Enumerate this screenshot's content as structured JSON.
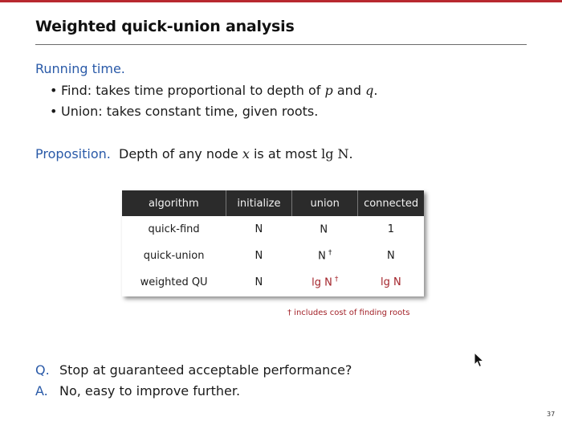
{
  "slide": {
    "title": "Weighted quick-union analysis",
    "running_time": {
      "heading": "Running time.",
      "bullets": [
        {
          "pre": "Find:  takes time proportional to depth of ",
          "v1": "p",
          "mid": " and ",
          "v2": "q",
          "post": "."
        },
        {
          "text": "Union:  takes constant time, given roots."
        }
      ]
    },
    "proposition": {
      "label": "Proposition.",
      "pre": "Depth of any node ",
      "var": "x",
      "mid": " is at most ",
      "expr": "lg N",
      "post": "."
    },
    "table": {
      "headers": [
        "algorithm",
        "initialize",
        "union",
        "connected"
      ],
      "rows": [
        {
          "algorithm": "quick-find",
          "initialize": "N",
          "union": "N",
          "union_dagger": "",
          "connected": "1"
        },
        {
          "algorithm": "quick-union",
          "initialize": "N",
          "union": "N",
          "union_dagger": "†",
          "connected": "N"
        },
        {
          "algorithm": "weighted QU",
          "initialize": "N",
          "union": "lg N",
          "union_dagger": "†",
          "connected": "lg N"
        }
      ],
      "footnote": "† includes cost of finding roots"
    },
    "qa": [
      {
        "label": "Q.",
        "text": "Stop at guaranteed acceptable performance?"
      },
      {
        "label": "A.",
        "text": "No, easy to improve further."
      }
    ],
    "page_number": "37"
  },
  "colors": {
    "accent_rule": "#b8292f",
    "heading_blue": "#2a5aa8",
    "highlight_red": "#a3232a",
    "table_header": "#2b2b2b"
  }
}
